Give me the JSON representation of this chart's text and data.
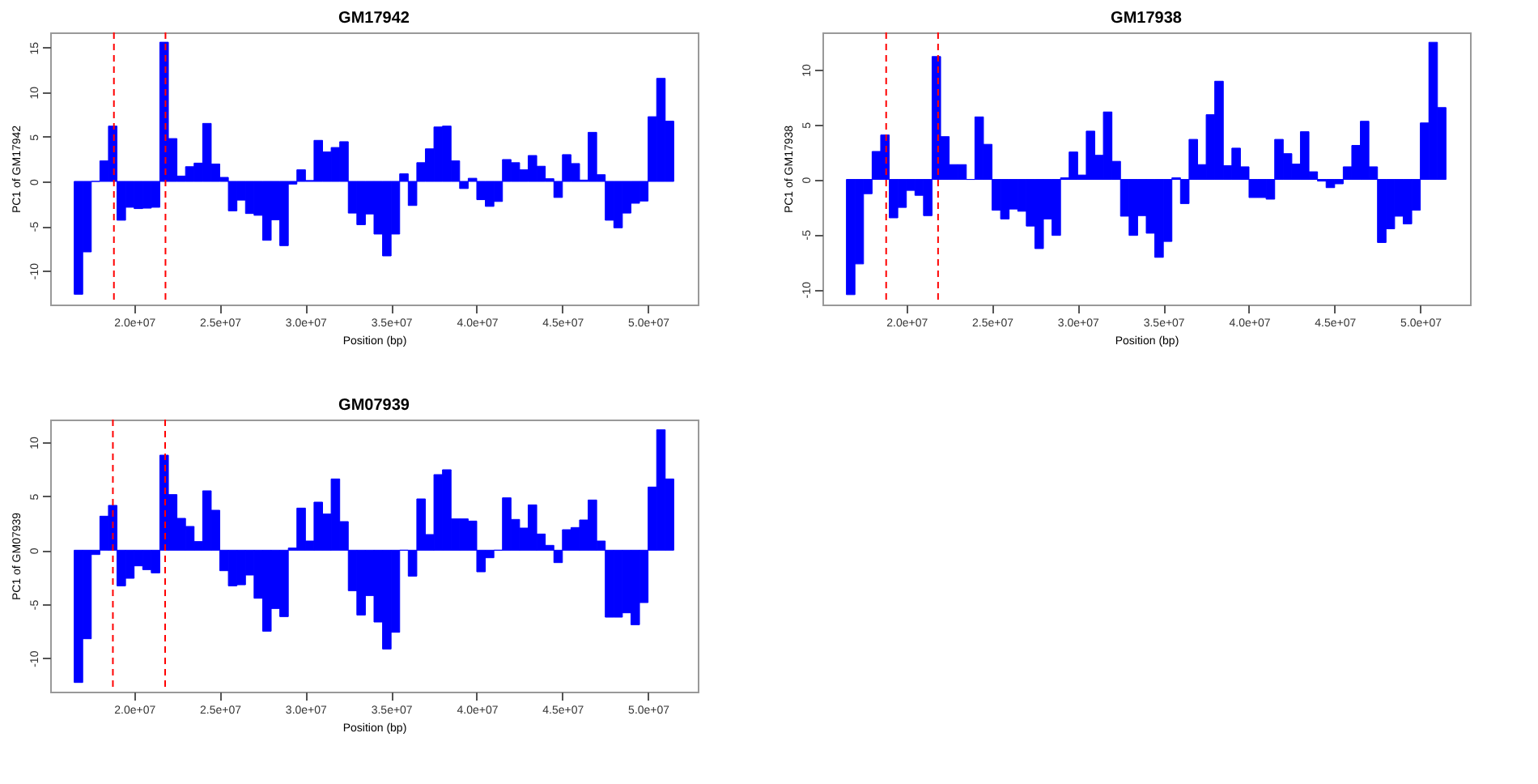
{
  "chart_data": [
    {
      "type": "bar",
      "title": "GM17942",
      "xlabel": "Position (bp)",
      "ylabel": "PC1 of GM17942",
      "color": "#0000ff",
      "x": [
        16750000,
        17250000,
        17750000,
        18250000,
        18750000,
        19250000,
        19750000,
        20250000,
        20750000,
        21250000,
        21750000,
        22250000,
        22750000,
        23250000,
        23750000,
        24250000,
        24750000,
        25250000,
        25750000,
        26250000,
        26750000,
        27250000,
        27750000,
        28250000,
        28750000,
        29250000,
        29750000,
        30250000,
        30750000,
        31250000,
        31750000,
        32250000,
        32750000,
        33250000,
        33750000,
        34250000,
        34750000,
        35250000,
        35750000,
        36250000,
        36750000,
        37250000,
        37750000,
        38250000,
        38750000,
        39250000,
        39750000,
        40250000,
        40750000,
        41250000,
        41750000,
        42250000,
        42750000,
        43250000,
        43750000,
        44250000,
        44750000,
        45250000,
        45750000,
        46250000,
        46750000,
        47250000,
        47750000,
        48250000,
        48750000,
        49250000,
        49750000,
        50250000,
        50750000,
        51250000
      ],
      "values": [
        -12.65,
        -7.9,
        0,
        2.3,
        6.2,
        -4.35,
        -2.9,
        -3.05,
        -3.0,
        -2.9,
        15.6,
        4.8,
        0.6,
        1.65,
        2.05,
        6.5,
        1.95,
        0.45,
        -3.3,
        -2.1,
        -3.6,
        -3.8,
        -6.6,
        -4.3,
        -7.2,
        -0.3,
        1.3,
        0.1,
        4.6,
        3.3,
        3.8,
        4.45,
        -3.55,
        -4.85,
        -3.65,
        -5.9,
        -8.35,
        -5.9,
        0.85,
        -2.7,
        2.1,
        3.65,
        6.1,
        6.2,
        2.3,
        -0.8,
        0.35,
        -2.05,
        -2.8,
        -2.25,
        2.45,
        2.1,
        1.3,
        2.9,
        1.7,
        0.3,
        -1.8,
        3.0,
        2.0,
        0.15,
        5.5,
        0.75,
        -4.35,
        -5.2,
        -3.55,
        -2.45,
        -2.2,
        7.25,
        11.55,
        6.75
      ],
      "xlim": [
        15100000,
        52900000
      ],
      "ylim": [
        -13.8,
        16.7
      ],
      "xticks": [
        {
          "value": 20000000,
          "label": "2.0e+07"
        },
        {
          "value": 25000000,
          "label": "2.5e+07"
        },
        {
          "value": 30000000,
          "label": "3.0e+07"
        },
        {
          "value": 35000000,
          "label": "3.5e+07"
        },
        {
          "value": 40000000,
          "label": "4.0e+07"
        },
        {
          "value": 45000000,
          "label": "4.5e+07"
        },
        {
          "value": 50000000,
          "label": "5.0e+07"
        }
      ],
      "yticks": [
        -10,
        -5,
        0,
        5,
        10,
        15
      ],
      "ref_lines": [
        {
          "axis": "x",
          "value": 18820000,
          "color": "#ff0000",
          "line_style": "dashed"
        },
        {
          "axis": "x",
          "value": 21830000,
          "color": "#ff0000",
          "line_style": "dashed"
        }
      ]
    },
    {
      "type": "bar",
      "title": "GM17938",
      "xlabel": "Position (bp)",
      "ylabel": "PC1 of GM17938",
      "color": "#0000ff",
      "x": [
        16750000,
        17250000,
        17750000,
        18250000,
        18750000,
        19250000,
        19750000,
        20250000,
        20750000,
        21250000,
        21750000,
        22250000,
        22750000,
        23250000,
        23750000,
        24250000,
        24750000,
        25250000,
        25750000,
        26250000,
        26750000,
        27250000,
        27750000,
        28250000,
        28750000,
        29250000,
        29750000,
        30250000,
        30750000,
        31250000,
        31750000,
        32250000,
        32750000,
        33250000,
        33750000,
        34250000,
        34750000,
        35250000,
        35750000,
        36250000,
        36750000,
        37250000,
        37750000,
        38250000,
        38750000,
        39250000,
        39750000,
        40250000,
        40750000,
        41250000,
        41750000,
        42250000,
        42750000,
        43250000,
        43750000,
        44250000,
        44750000,
        45250000,
        45750000,
        46250000,
        46750000,
        47250000,
        47750000,
        48250000,
        48750000,
        49250000,
        49750000,
        50250000,
        50750000,
        51250000
      ],
      "values": [
        -10.5,
        -7.7,
        -1.3,
        2.55,
        4.05,
        -3.5,
        -2.55,
        -1.0,
        -1.45,
        -3.3,
        11.2,
        3.9,
        1.35,
        1.35,
        0,
        5.7,
        3.2,
        -2.8,
        -3.6,
        -2.7,
        -2.9,
        -4.25,
        -6.3,
        -3.6,
        -5.1,
        0.15,
        2.5,
        0.4,
        4.4,
        2.2,
        6.15,
        1.65,
        -3.35,
        -5.1,
        -3.3,
        -4.9,
        -7.1,
        -5.65,
        0.15,
        -2.2,
        3.65,
        1.35,
        5.9,
        8.95,
        1.25,
        2.85,
        1.15,
        -1.65,
        -1.65,
        -1.8,
        3.65,
        2.35,
        1.4,
        4.35,
        0.7,
        -0.15,
        -0.75,
        -0.4,
        1.15,
        3.1,
        5.3,
        1.15,
        -5.75,
        -4.5,
        -3.35,
        -4.05,
        -2.8,
        5.15,
        12.5,
        6.55
      ],
      "xlim": [
        15100000,
        52900000
      ],
      "ylim": [
        -11.4,
        13.4
      ],
      "xticks": [
        {
          "value": 20000000,
          "label": "2.0e+07"
        },
        {
          "value": 25000000,
          "label": "2.5e+07"
        },
        {
          "value": 30000000,
          "label": "3.0e+07"
        },
        {
          "value": 35000000,
          "label": "3.5e+07"
        },
        {
          "value": 40000000,
          "label": "4.0e+07"
        },
        {
          "value": 45000000,
          "label": "4.5e+07"
        },
        {
          "value": 50000000,
          "label": "5.0e+07"
        }
      ],
      "yticks": [
        -10,
        -5,
        0,
        5,
        10
      ],
      "ref_lines": [
        {
          "axis": "x",
          "value": 18820000,
          "color": "#ff0000",
          "line_style": "dashed"
        },
        {
          "axis": "x",
          "value": 21850000,
          "color": "#ff0000",
          "line_style": "dashed"
        }
      ]
    },
    {
      "type": "bar",
      "title": "GM07939",
      "xlabel": "Position (bp)",
      "ylabel": "PC1 of GM07939",
      "color": "#0000ff",
      "x": [
        16750000,
        17250000,
        17750000,
        18250000,
        18750000,
        19250000,
        19750000,
        20250000,
        20750000,
        21250000,
        21750000,
        22250000,
        22750000,
        23250000,
        23750000,
        24250000,
        24750000,
        25250000,
        25750000,
        26250000,
        26750000,
        27250000,
        27750000,
        28250000,
        28750000,
        29250000,
        29750000,
        30250000,
        30750000,
        31250000,
        31750000,
        32250000,
        32750000,
        33250000,
        33750000,
        34250000,
        34750000,
        35250000,
        35750000,
        36250000,
        36750000,
        37250000,
        37750000,
        38250000,
        38750000,
        39250000,
        39750000,
        40250000,
        40750000,
        41250000,
        41750000,
        42250000,
        42750000,
        43250000,
        43750000,
        44250000,
        44750000,
        45250000,
        45750000,
        46250000,
        46750000,
        47250000,
        47750000,
        48250000,
        48750000,
        49250000,
        49750000,
        50250000,
        50750000,
        51250000
      ],
      "values": [
        -12.25,
        -8.2,
        -0.4,
        3.15,
        4.15,
        -3.3,
        -2.6,
        -1.45,
        -1.8,
        -2.1,
        8.8,
        5.15,
        2.95,
        2.2,
        0.8,
        5.5,
        3.7,
        -1.9,
        -3.3,
        -3.2,
        -2.3,
        -4.45,
        -7.5,
        -5.4,
        -6.15,
        0.2,
        3.9,
        0.85,
        4.45,
        3.35,
        6.6,
        2.65,
        -3.75,
        -6.0,
        -4.2,
        -6.65,
        -9.15,
        -7.6,
        0,
        -2.4,
        4.75,
        1.45,
        7.0,
        7.45,
        2.9,
        2.9,
        2.7,
        -2.0,
        -0.7,
        0,
        4.85,
        2.85,
        2.05,
        4.2,
        1.5,
        0.45,
        -1.15,
        1.9,
        2.1,
        2.8,
        4.65,
        0.85,
        -6.2,
        -6.2,
        -5.8,
        -6.9,
        -4.85,
        5.85,
        11.15,
        6.6
      ],
      "xlim": [
        15100000,
        52900000
      ],
      "ylim": [
        -13.1,
        12.1
      ],
      "xticks": [
        {
          "value": 20000000,
          "label": "2.0e+07"
        },
        {
          "value": 25000000,
          "label": "2.5e+07"
        },
        {
          "value": 30000000,
          "label": "3.0e+07"
        },
        {
          "value": 35000000,
          "label": "3.5e+07"
        },
        {
          "value": 40000000,
          "label": "4.0e+07"
        },
        {
          "value": 45000000,
          "label": "4.5e+07"
        },
        {
          "value": 50000000,
          "label": "5.0e+07"
        }
      ],
      "yticks": [
        -10,
        -5,
        0,
        5,
        10
      ],
      "ref_lines": [
        {
          "axis": "x",
          "value": 18760000,
          "color": "#ff0000",
          "line_style": "dashed"
        },
        {
          "axis": "x",
          "value": 21810000,
          "color": "#ff0000",
          "line_style": "dashed"
        }
      ]
    }
  ]
}
